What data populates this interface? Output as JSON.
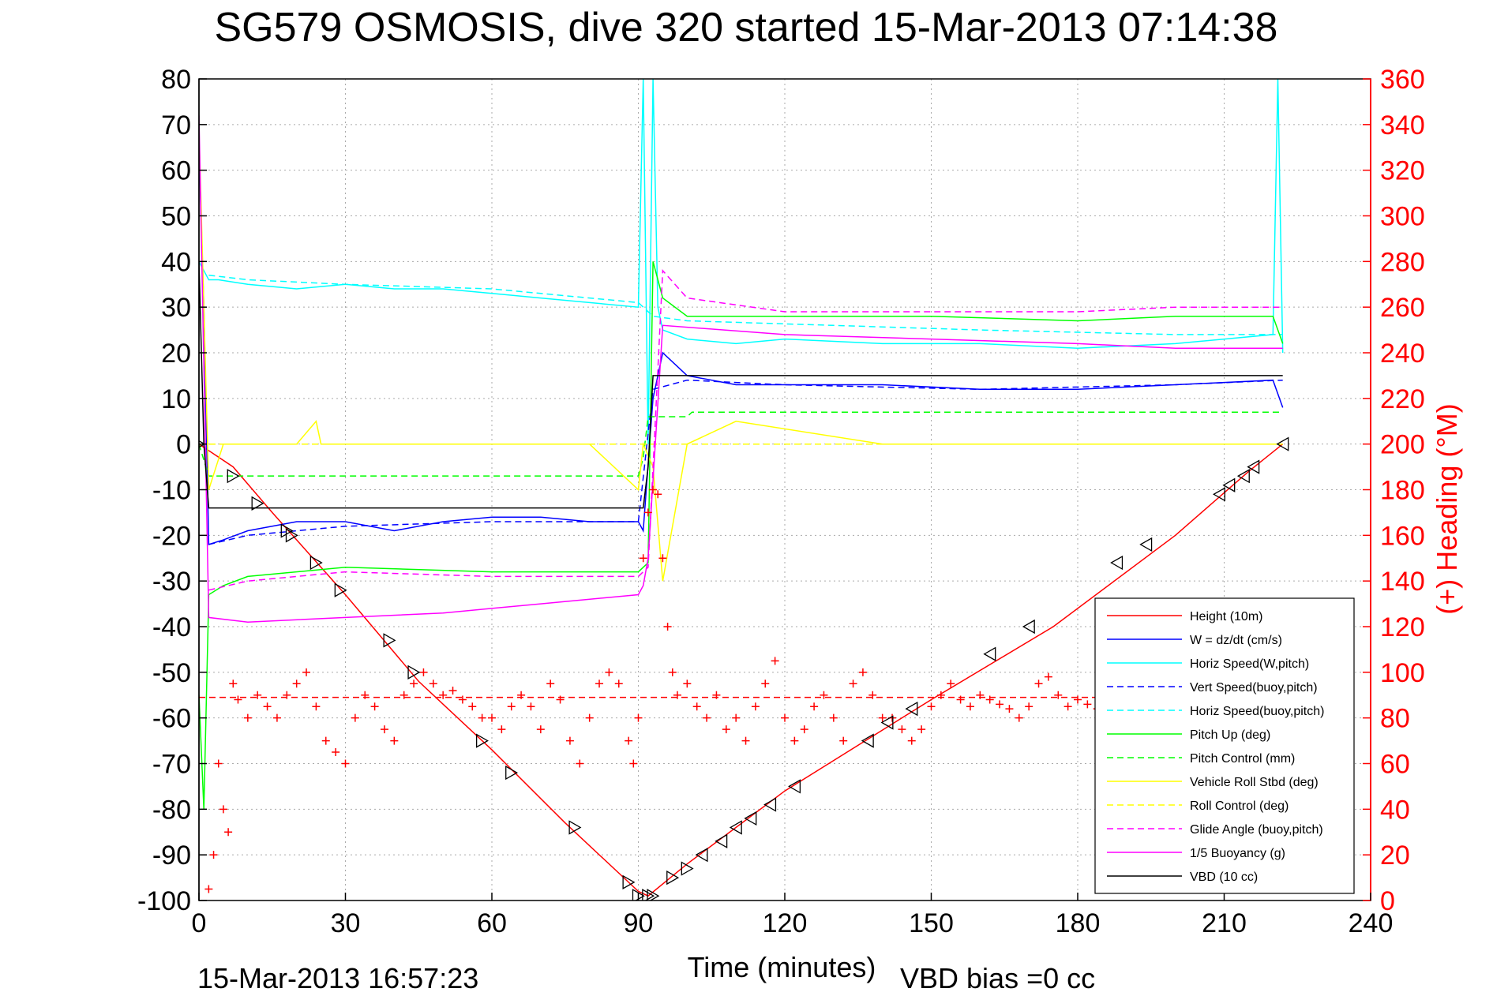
{
  "chart_data": {
    "type": "line",
    "title": "SG579 OSMOSIS, dive 320 started 15-Mar-2013 07:14:38",
    "xlabel": "Time (minutes)",
    "ylabel_right": "(+) Heading (°M)",
    "footer_left": "15-Mar-2013 16:57:23",
    "footer_right": "VBD bias =0 cc",
    "xlim": [
      0,
      240
    ],
    "ylim": [
      -100,
      80
    ],
    "ylim_right": [
      0,
      360
    ],
    "x_ticks": [
      "0",
      "30",
      "60",
      "90",
      "120",
      "150",
      "180",
      "210",
      "240"
    ],
    "y_ticks": [
      "80",
      "70",
      "60",
      "50",
      "40",
      "30",
      "20",
      "10",
      "0",
      "-10",
      "-20",
      "-30",
      "-40",
      "-50",
      "-60",
      "-70",
      "-80",
      "-90",
      "-100"
    ],
    "y_ticks_right": [
      "360",
      "340",
      "320",
      "300",
      "280",
      "260",
      "240",
      "220",
      "200",
      "180",
      "160",
      "140",
      "120",
      "100",
      "80",
      "60",
      "40",
      "20",
      "0"
    ],
    "grid": true,
    "legend_position": "lower-right",
    "colors": {
      "red": "#ff0000",
      "blue": "#0000ff",
      "cyan": "#00ffff",
      "green": "#00ff00",
      "yellow": "#ffff00",
      "magenta": "#ff00ff",
      "black": "#000000"
    },
    "series": [
      {
        "name": "Height (10m)",
        "color": "#ff0000",
        "style": "solid",
        "x": [
          0,
          7,
          15,
          30,
          45,
          60,
          75,
          90,
          92,
          100,
          120,
          150,
          175,
          200,
          215,
          222
        ],
        "y": [
          0,
          -5,
          -15,
          -33,
          -52,
          -67,
          -83,
          -98,
          -99,
          -92,
          -76,
          -56,
          -40,
          -20,
          -6,
          0
        ]
      },
      {
        "name": "W = dz/dt (cm/s)",
        "color": "#0000ff",
        "style": "solid",
        "x": [
          0,
          1,
          2,
          5,
          10,
          15,
          20,
          30,
          40,
          50,
          60,
          70,
          80,
          90,
          91,
          93,
          95,
          100,
          110,
          120,
          140,
          160,
          180,
          200,
          220,
          222
        ],
        "y": [
          65,
          30,
          -22,
          -21,
          -19,
          -18,
          -17,
          -17,
          -19,
          -17,
          -16,
          -16,
          -17,
          -17,
          -19,
          10,
          20,
          15,
          13,
          13,
          13,
          12,
          12,
          13,
          14,
          8
        ]
      },
      {
        "name": "Horiz Speed(W,pitch)",
        "color": "#00ffff",
        "style": "solid",
        "x": [
          0,
          2,
          4,
          10,
          20,
          30,
          40,
          50,
          60,
          70,
          80,
          90,
          91,
          92,
          93,
          94,
          95,
          100,
          110,
          120,
          140,
          160,
          180,
          200,
          220,
          221,
          222
        ],
        "y": [
          40,
          36,
          36,
          35,
          34,
          35,
          34,
          34,
          33,
          32,
          31,
          30,
          80,
          0,
          80,
          30,
          25,
          23,
          22,
          23,
          22,
          22,
          21,
          22,
          24,
          80,
          20
        ]
      },
      {
        "name": "Vert Speed(buoy,pitch)",
        "color": "#0000ff",
        "style": "dashed",
        "x": [
          2,
          10,
          30,
          60,
          90,
          93,
          100,
          120,
          160,
          200,
          222
        ],
        "y": [
          -22,
          -20,
          -18,
          -17,
          -17,
          12,
          14,
          13,
          12,
          13,
          14
        ]
      },
      {
        "name": "Horiz Speed(buoy,pitch)",
        "color": "#00ffff",
        "style": "dashed",
        "x": [
          2,
          10,
          30,
          60,
          90,
          93,
          100,
          130,
          160,
          200,
          222
        ],
        "y": [
          37,
          36,
          35,
          34,
          31,
          28,
          27,
          26,
          25,
          24,
          24
        ]
      },
      {
        "name": "Pitch Up (deg)",
        "color": "#00ff00",
        "style": "solid",
        "x": [
          0,
          1,
          2,
          5,
          10,
          30,
          60,
          90,
          92,
          93,
          95,
          100,
          120,
          150,
          180,
          200,
          220,
          222
        ],
        "y": [
          -55,
          -80,
          -33,
          -31,
          -29,
          -27,
          -28,
          -28,
          -26,
          40,
          32,
          28,
          28,
          28,
          27,
          28,
          28,
          22
        ]
      },
      {
        "name": "Pitch Control (mm)",
        "color": "#00ff00",
        "style": "dashed",
        "x": [
          0,
          2,
          3,
          90,
          91,
          92,
          93,
          100,
          101,
          222
        ],
        "y": [
          0,
          -7,
          -7,
          -7,
          -3,
          6,
          6,
          6,
          7,
          7
        ]
      },
      {
        "name": "Vehicle Roll Stbd (deg)",
        "color": "#ffff00",
        "style": "solid",
        "x": [
          0,
          2,
          5,
          20,
          24,
          25,
          40,
          60,
          80,
          90,
          91,
          93,
          95,
          100,
          110,
          140,
          160,
          200,
          220,
          222
        ],
        "y": [
          70,
          -10,
          0,
          0,
          5,
          0,
          0,
          0,
          0,
          -10,
          0,
          -5,
          -30,
          0,
          5,
          0,
          0,
          0,
          0,
          0
        ]
      },
      {
        "name": "Roll Control (deg)",
        "color": "#ffff00",
        "style": "dashed",
        "x": [
          0,
          2,
          90,
          92,
          222
        ],
        "y": [
          0,
          0,
          0,
          0,
          0
        ]
      },
      {
        "name": "Glide Angle (buoy,pitch)",
        "color": "#ff00ff",
        "style": "dashed",
        "x": [
          2,
          10,
          30,
          60,
          90,
          92,
          95,
          100,
          120,
          150,
          180,
          200,
          222
        ],
        "y": [
          -32,
          -30,
          -28,
          -29,
          -29,
          -27,
          38,
          32,
          29,
          29,
          29,
          30,
          30
        ]
      },
      {
        "name": "1/5 Buoyancy (g)",
        "color": "#ff00ff",
        "style": "solid",
        "x": [
          0,
          2,
          10,
          30,
          50,
          70,
          90,
          91,
          92,
          95,
          120,
          150,
          180,
          200,
          222
        ],
        "y": [
          72,
          -38,
          -39,
          -38,
          -37,
          -35,
          -33,
          -31,
          -25,
          26,
          24,
          23,
          22,
          21,
          21
        ]
      },
      {
        "name": "VBD (10 cc)",
        "color": "#000000",
        "style": "solid",
        "x": [
          0,
          1,
          2,
          90,
          91,
          92,
          93,
          222
        ],
        "y": [
          40,
          0,
          -14,
          -14,
          -14,
          -5,
          15,
          15
        ]
      },
      {
        "name": "Heading",
        "color": "#ff0000",
        "style": "markers",
        "axis": "right",
        "marker": "+",
        "x": [
          2,
          3,
          4,
          5,
          6,
          7,
          8,
          10,
          12,
          14,
          16,
          18,
          20,
          22,
          24,
          26,
          28,
          30,
          32,
          34,
          36,
          38,
          40,
          42,
          44,
          46,
          48,
          50,
          52,
          54,
          56,
          58,
          60,
          62,
          64,
          66,
          68,
          70,
          72,
          74,
          76,
          78,
          80,
          82,
          84,
          86,
          88,
          89,
          90,
          91,
          92,
          93,
          94,
          95,
          96,
          97,
          98,
          100,
          102,
          104,
          106,
          108,
          110,
          112,
          114,
          116,
          118,
          120,
          122,
          124,
          126,
          128,
          130,
          132,
          134,
          136,
          138,
          140,
          142,
          144,
          146,
          148,
          150,
          152,
          154,
          156,
          158,
          160,
          162,
          164,
          166,
          168,
          170,
          172,
          174,
          176,
          178,
          180,
          182,
          184
        ],
        "y": [
          5,
          20,
          60,
          40,
          30,
          95,
          88,
          80,
          90,
          85,
          80,
          90,
          95,
          100,
          85,
          70,
          65,
          60,
          80,
          90,
          85,
          75,
          70,
          90,
          95,
          100,
          95,
          90,
          92,
          88,
          85,
          80,
          80,
          75,
          85,
          90,
          85,
          75,
          95,
          88,
          70,
          60,
          80,
          95,
          100,
          95,
          70,
          60,
          80,
          150,
          170,
          180,
          178,
          150,
          120,
          100,
          90,
          95,
          85,
          80,
          90,
          75,
          80,
          70,
          85,
          95,
          105,
          80,
          70,
          75,
          85,
          90,
          80,
          70,
          95,
          100,
          90,
          80,
          80,
          75,
          70,
          75,
          85,
          90,
          95,
          88,
          85,
          90,
          88,
          86,
          84,
          80,
          85,
          95,
          98,
          90,
          85,
          88,
          86,
          84
        ]
      },
      {
        "name": "Heading reference",
        "color": "#ff0000",
        "style": "dashed",
        "axis": "right",
        "x": [
          0,
          184
        ],
        "y": [
          89,
          89
        ]
      },
      {
        "name": "Depth markers",
        "color": "#000000",
        "style": "markers",
        "marker": "triangle",
        "x": [
          0,
          7,
          12,
          18,
          19,
          24,
          29,
          39,
          44,
          58,
          64,
          77,
          88,
          90,
          92,
          93,
          97,
          100,
          103,
          107,
          110,
          113,
          117,
          122,
          137,
          141,
          146,
          162,
          170,
          188,
          194,
          209,
          211,
          214,
          216,
          222
        ],
        "y": [
          0,
          -7,
          -13,
          -19,
          -20,
          -26,
          -32,
          -43,
          -50,
          -65,
          -72,
          -84,
          -96,
          -99,
          -99,
          -99,
          -95,
          -93,
          -90,
          -87,
          -84,
          -82,
          -79,
          -75,
          -65,
          -61,
          -58,
          -46,
          -40,
          -26,
          -22,
          -11,
          -9,
          -7,
          -5,
          0
        ]
      }
    ]
  }
}
